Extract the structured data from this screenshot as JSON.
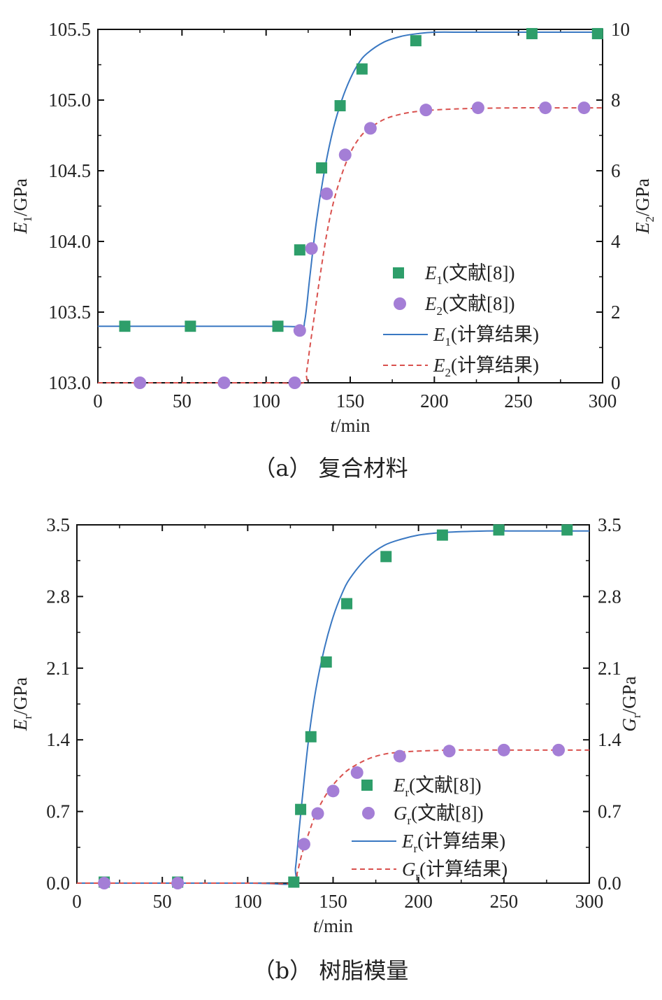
{
  "chart_data": [
    {
      "type": "scatter",
      "caption": "（a） 复合材料",
      "xlabel": {
        "var": "t",
        "unit": "/min"
      },
      "ylabel_left": {
        "var": "E",
        "sub": "1",
        "unit": "/GPa"
      },
      "ylabel_right": {
        "var": "E",
        "sub": "2",
        "unit": "/GPa"
      },
      "xlim": [
        0,
        300
      ],
      "ylim_left": [
        103.0,
        105.5
      ],
      "ylim_right": [
        0,
        10
      ],
      "xticks": [
        0,
        50,
        100,
        150,
        200,
        250,
        300
      ],
      "yticks_left": [
        "103.0",
        "103.5",
        "104.0",
        "104.5",
        "105.0",
        "105.5"
      ],
      "yticks_right": [
        "0",
        "2",
        "4",
        "6",
        "8",
        "10"
      ],
      "series": [
        {
          "name": "E1(文献[8])",
          "legend_var": "E",
          "legend_sub": "1",
          "legend_rest": "(文献[8])",
          "kind": "marker-square",
          "axis": "left",
          "color": "#2e9e6a",
          "x": [
            16,
            55,
            107,
            120,
            133,
            144,
            157,
            189,
            258,
            297
          ],
          "y": [
            103.4,
            103.4,
            103.4,
            103.94,
            104.52,
            104.96,
            105.22,
            105.42,
            105.47,
            105.47
          ]
        },
        {
          "name": "E2(文献[8])",
          "legend_var": "E",
          "legend_sub": "2",
          "legend_rest": "(文献[8])",
          "kind": "marker-circle",
          "axis": "right",
          "color": "#a47ed6",
          "x": [
            25,
            75,
            117,
            120,
            127,
            136,
            147,
            162,
            195,
            226,
            266,
            289
          ],
          "y": [
            0.0,
            0.0,
            0.0,
            1.48,
            3.8,
            5.35,
            6.45,
            7.2,
            7.72,
            7.78,
            7.78,
            7.78
          ]
        },
        {
          "name": "E1(计算结果)",
          "legend_var": "E",
          "legend_sub": "1",
          "legend_rest": "(计算结果)",
          "kind": "line-solid",
          "axis": "left",
          "color": "#3a78c2",
          "x": [
            0,
            100,
            120,
            123,
            126,
            130,
            135,
            140,
            145,
            150,
            155,
            160,
            170,
            180,
            190,
            200,
            220,
            250,
            280,
            300
          ],
          "y": [
            103.4,
            103.4,
            103.4,
            103.44,
            103.75,
            104.15,
            104.52,
            104.8,
            105.0,
            105.15,
            105.26,
            105.33,
            105.41,
            105.45,
            105.47,
            105.48,
            105.48,
            105.48,
            105.48,
            105.48
          ]
        },
        {
          "name": "E2(计算结果)",
          "legend_var": "E",
          "legend_sub": "2",
          "legend_rest": "(计算结果)",
          "kind": "line-dashed",
          "axis": "right",
          "color": "#d9514e",
          "x": [
            0,
            100,
            122,
            124,
            126,
            129,
            132,
            136,
            140,
            145,
            150,
            155,
            160,
            170,
            180,
            190,
            200,
            220,
            250,
            280,
            300
          ],
          "y": [
            0.0,
            0.0,
            0.0,
            0.3,
            1.0,
            2.0,
            3.0,
            4.2,
            5.1,
            5.9,
            6.5,
            6.9,
            7.15,
            7.45,
            7.6,
            7.68,
            7.72,
            7.76,
            7.78,
            7.78,
            7.78
          ]
        }
      ]
    },
    {
      "type": "scatter",
      "caption": "（b） 树脂模量",
      "xlabel": {
        "var": "t",
        "unit": "/min"
      },
      "ylabel_left": {
        "var": "E",
        "sub": "r",
        "unit": "/GPa"
      },
      "ylabel_right": {
        "var": "G",
        "sub": "r",
        "unit": "/GPa"
      },
      "xlim": [
        0,
        300
      ],
      "ylim_left": [
        0.0,
        3.5
      ],
      "ylim_right": [
        0.0,
        3.5
      ],
      "xticks": [
        0,
        50,
        100,
        150,
        200,
        250,
        300
      ],
      "yticks_left": [
        "0.0",
        "0.7",
        "1.4",
        "2.1",
        "2.8",
        "3.5"
      ],
      "yticks_right": [
        "0.0",
        "0.7",
        "1.4",
        "2.1",
        "2.8",
        "3.5"
      ],
      "series": [
        {
          "name": "Er(文献[8])",
          "legend_var": "E",
          "legend_sub": "r",
          "legend_rest": "(文献[8])",
          "kind": "marker-square",
          "axis": "left",
          "color": "#2e9e6a",
          "x": [
            16,
            59,
            127,
            131,
            137,
            146,
            158,
            181,
            214,
            247,
            287
          ],
          "y": [
            0.01,
            0.01,
            0.01,
            0.72,
            1.43,
            2.16,
            2.73,
            3.19,
            3.4,
            3.45,
            3.45
          ]
        },
        {
          "name": "Gr(文献[8])",
          "legend_var": "G",
          "legend_sub": "r",
          "legend_rest": "(文献[8])",
          "kind": "marker-circle",
          "axis": "right",
          "color": "#a47ed6",
          "x": [
            16,
            59,
            133,
            141,
            150,
            164,
            189,
            218,
            250,
            282
          ],
          "y": [
            0.0,
            0.0,
            0.38,
            0.68,
            0.9,
            1.08,
            1.24,
            1.29,
            1.3,
            1.3
          ]
        },
        {
          "name": "Er(计算结果)",
          "legend_var": "E",
          "legend_sub": "r",
          "legend_rest": "(计算结果)",
          "kind": "line-solid",
          "axis": "left",
          "color": "#3a78c2",
          "x": [
            0,
            100,
            126,
            128,
            130,
            133,
            136,
            140,
            145,
            150,
            155,
            160,
            170,
            180,
            190,
            200,
            210,
            220,
            240,
            260,
            280,
            300
          ],
          "y": [
            0.0,
            0.0,
            0.0,
            0.15,
            0.5,
            1.0,
            1.45,
            1.9,
            2.3,
            2.6,
            2.82,
            2.98,
            3.18,
            3.3,
            3.36,
            3.4,
            3.42,
            3.43,
            3.44,
            3.44,
            3.44,
            3.44
          ]
        },
        {
          "name": "Gr(计算结果)",
          "legend_var": "G",
          "legend_sub": "r",
          "legend_rest": "(计算结果)",
          "kind": "line-dashed",
          "axis": "right",
          "color": "#d9514e",
          "x": [
            0,
            100,
            127,
            129,
            132,
            136,
            140,
            145,
            150,
            155,
            160,
            170,
            180,
            190,
            200,
            220,
            250,
            280,
            300
          ],
          "y": [
            0.0,
            0.0,
            0.0,
            0.1,
            0.3,
            0.5,
            0.68,
            0.84,
            0.96,
            1.05,
            1.12,
            1.21,
            1.26,
            1.28,
            1.29,
            1.3,
            1.3,
            1.3,
            1.3
          ]
        }
      ]
    }
  ]
}
